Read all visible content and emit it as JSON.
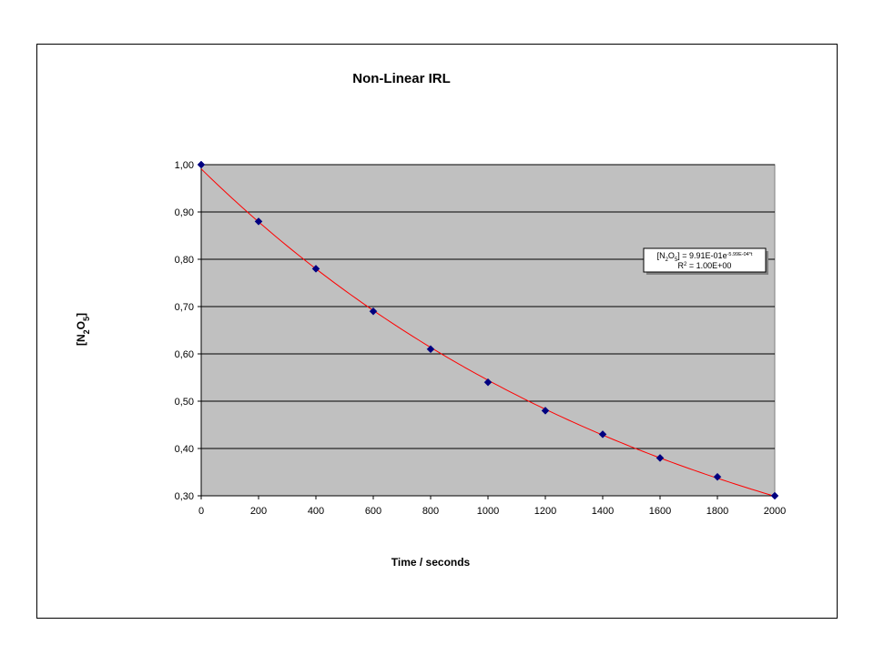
{
  "chart_data": {
    "type": "scatter",
    "title": "Non-Linear IRL",
    "xlabel": "Time / seconds",
    "ylabel": {
      "base": "[N",
      "sub1": "2",
      "mid": "O",
      "sub2": "5",
      "end": "]"
    },
    "xlim": [
      0,
      2000
    ],
    "ylim": [
      0.3,
      1.0
    ],
    "xticks": [
      "0",
      "200",
      "400",
      "600",
      "800",
      "1000",
      "1200",
      "1400",
      "1600",
      "1800",
      "2000"
    ],
    "yticks": [
      "1,00",
      "0,90",
      "0,80",
      "0,70",
      "0,60",
      "0,50",
      "0,40",
      "0,30"
    ],
    "grid": "horizontal",
    "points": {
      "x": [
        0,
        200,
        400,
        600,
        800,
        1000,
        1200,
        1400,
        1600,
        1800,
        2000
      ],
      "y": [
        1.0,
        0.88,
        0.78,
        0.69,
        0.61,
        0.54,
        0.48,
        0.43,
        0.38,
        0.34,
        0.3
      ]
    },
    "trendline": {
      "type": "exponential",
      "a": 0.991,
      "k": 0.000599
    },
    "annotation": {
      "line1_prefix": "[N",
      "line1_sub1": "2",
      "line1_mid": "O",
      "line1_sub2": "5",
      "line1_eq": "] = 9.91E-01e",
      "line1_exp": "-5.99E-04*t",
      "line2_base": "R",
      "line2_sup": "2",
      "line2_rest": " = 1.00E+00"
    },
    "colors": {
      "plot_bg": "#c0c0c0",
      "marker": "#000080",
      "trendline": "#ff0000",
      "grid": "#000000"
    }
  }
}
